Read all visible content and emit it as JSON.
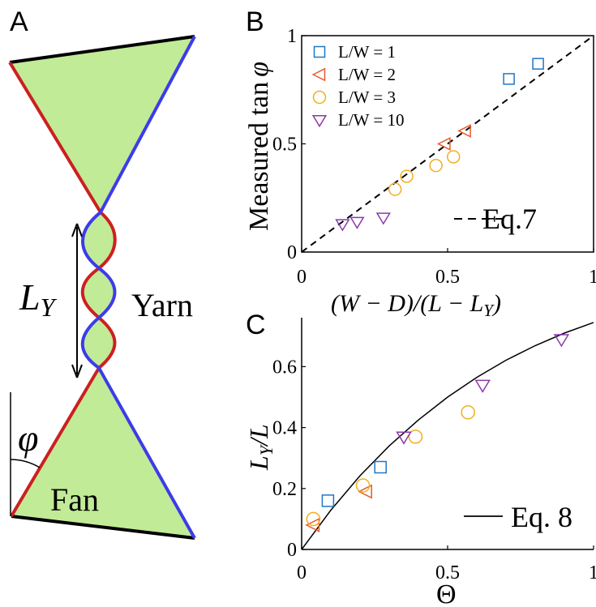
{
  "panels": {
    "a": {
      "letter": "A",
      "ly_label": "L",
      "ly_sub": "Y",
      "yarn_label": "Yarn",
      "phi_label": "φ",
      "fan_label": "Fan"
    },
    "b": {
      "letter": "B"
    },
    "c": {
      "letter": "C"
    }
  },
  "colors": {
    "fan_fill": "#c1eb97",
    "red_edge": "#cc2020",
    "blue_edge": "#3c3ce8",
    "l_w_1": "#1f77c4",
    "l_w_2": "#e85a2a",
    "l_w_3": "#f0b020",
    "l_w_10": "#8a3aa8"
  },
  "chart_data": [
    {
      "panel": "B",
      "type": "scatter",
      "xlabel": "(W − D)/(L − L",
      "xlabel_sub": "Y",
      "xlabel_tail": ")",
      "ylabel": "Measured tan",
      "ylabel_sym": "φ",
      "xlim": [
        0,
        1
      ],
      "ylim": [
        0,
        1
      ],
      "xticks": [
        "0",
        "0.5",
        "1"
      ],
      "yticks": [
        "0",
        "0.5",
        "1"
      ],
      "legend": "top-left",
      "series": [
        {
          "name": "L/W = 1",
          "marker": "square",
          "color": "#1f77c4",
          "points": [
            [
              0.71,
              0.8
            ],
            [
              0.81,
              0.87
            ]
          ]
        },
        {
          "name": "L/W = 2",
          "marker": "triangle-left",
          "color": "#e85a2a",
          "points": [
            [
              0.49,
              0.5
            ],
            [
              0.56,
              0.56
            ]
          ]
        },
        {
          "name": "L/W = 3",
          "marker": "circle",
          "color": "#f0b020",
          "points": [
            [
              0.32,
              0.29
            ],
            [
              0.36,
              0.35
            ],
            [
              0.46,
              0.4
            ],
            [
              0.52,
              0.44
            ]
          ]
        },
        {
          "name": "L/W = 10",
          "marker": "triangle-down",
          "color": "#8a3aa8",
          "points": [
            [
              0.14,
              0.13
            ],
            [
              0.19,
              0.14
            ],
            [
              0.28,
              0.16
            ]
          ]
        }
      ],
      "line": {
        "name": "Eq.7",
        "style": "dashed",
        "points": [
          [
            0,
            0
          ],
          [
            1,
            1
          ]
        ]
      }
    },
    {
      "panel": "C",
      "type": "scatter",
      "xlabel": "Θ",
      "ylabel": "L",
      "ylabel_sub": "Y",
      "ylabel_tail": "/L",
      "xlim": [
        0,
        1
      ],
      "ylim": [
        0,
        0.75
      ],
      "xticks": [
        "0",
        "0.5",
        "1"
      ],
      "yticks": [
        "0",
        "0.2",
        "0.4",
        "0.6"
      ],
      "series": [
        {
          "marker": "square",
          "color": "#1f77c4",
          "points": [
            [
              0.09,
              0.16
            ],
            [
              0.27,
              0.27
            ]
          ]
        },
        {
          "marker": "triangle-left",
          "color": "#e85a2a",
          "points": [
            [
              0.04,
              0.08
            ],
            [
              0.22,
              0.19
            ]
          ]
        },
        {
          "marker": "circle",
          "color": "#f0b020",
          "points": [
            [
              0.04,
              0.1
            ],
            [
              0.21,
              0.21
            ],
            [
              0.39,
              0.37
            ],
            [
              0.57,
              0.45
            ]
          ]
        },
        {
          "marker": "triangle-down",
          "color": "#8a3aa8",
          "points": [
            [
              0.35,
              0.37
            ],
            [
              0.62,
              0.54
            ],
            [
              0.89,
              0.69
            ]
          ]
        }
      ],
      "curve": {
        "name": "Eq. 8",
        "style": "solid",
        "points": [
          [
            0,
            0
          ],
          [
            0.1,
            0.129
          ],
          [
            0.2,
            0.242
          ],
          [
            0.3,
            0.34
          ],
          [
            0.4,
            0.425
          ],
          [
            0.5,
            0.5
          ],
          [
            0.6,
            0.565
          ],
          [
            0.7,
            0.621
          ],
          [
            0.8,
            0.669
          ],
          [
            0.9,
            0.71
          ],
          [
            1.0,
            0.745
          ]
        ]
      }
    }
  ]
}
